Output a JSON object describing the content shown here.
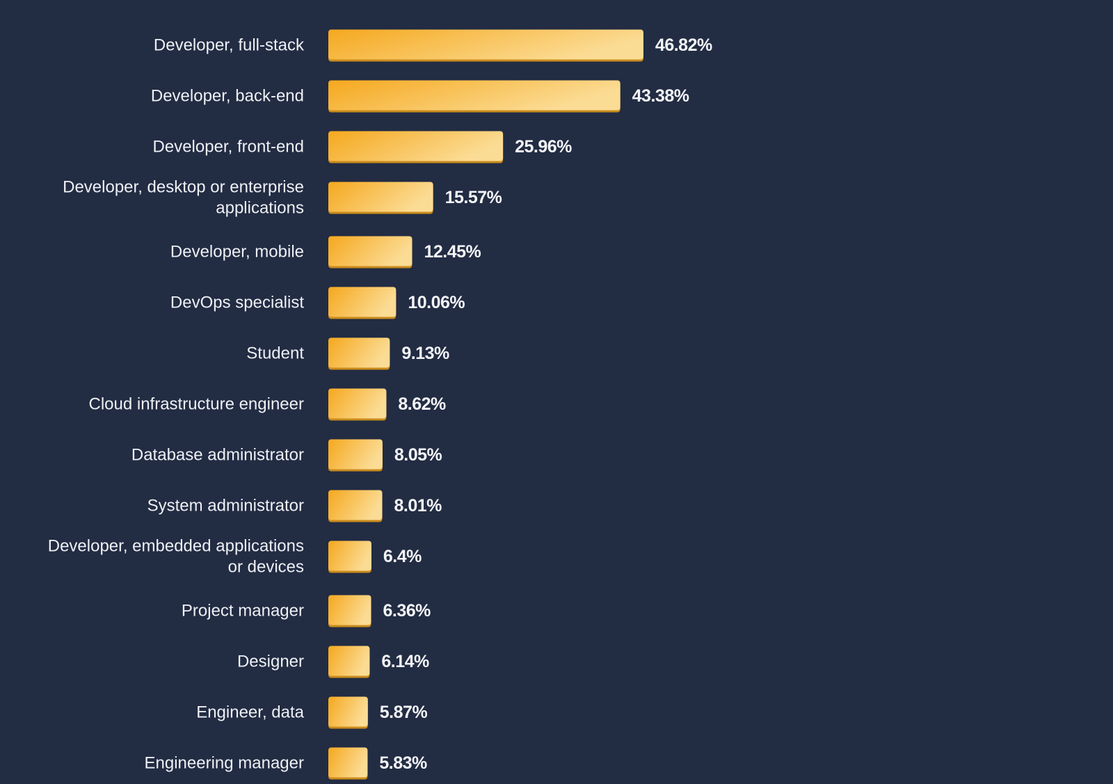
{
  "chart_data": {
    "type": "bar",
    "orientation": "horizontal",
    "categories": [
      "Developer, full-stack",
      "Developer, back-end",
      "Developer, front-end",
      "Developer, desktop or enterprise applications",
      "Developer, mobile",
      "DevOps specialist",
      "Student",
      "Cloud infrastructure engineer",
      "Database administrator",
      "System administrator",
      "Developer, embedded applications or devices",
      "Project manager",
      "Designer",
      "Engineer, data",
      "Engineering manager"
    ],
    "category_lines": [
      [
        "Developer, full-stack"
      ],
      [
        "Developer, back-end"
      ],
      [
        "Developer, front-end"
      ],
      [
        "Developer, desktop or enterprise",
        "applications"
      ],
      [
        "Developer, mobile"
      ],
      [
        "DevOps specialist"
      ],
      [
        "Student"
      ],
      [
        "Cloud infrastructure engineer"
      ],
      [
        "Database administrator"
      ],
      [
        "System administrator"
      ],
      [
        "Developer, embedded applications",
        "or devices"
      ],
      [
        "Project manager"
      ],
      [
        "Designer"
      ],
      [
        "Engineer, data"
      ],
      [
        "Engineering manager"
      ]
    ],
    "values": [
      46.82,
      43.38,
      25.96,
      15.57,
      12.45,
      10.06,
      9.13,
      8.62,
      8.05,
      8.01,
      6.4,
      6.36,
      6.14,
      5.87,
      5.83
    ],
    "value_labels": [
      "46.82%",
      "43.38%",
      "25.96%",
      "15.57%",
      "12.45%",
      "10.06%",
      "9.13%",
      "8.62%",
      "8.05%",
      "8.01%",
      "6.4%",
      "6.36%",
      "6.14%",
      "5.87%",
      "5.83%"
    ],
    "unit": "%",
    "title": "",
    "xlabel": "",
    "ylabel": "",
    "grid": false,
    "legend": "none",
    "colors": {
      "background": "#222c43",
      "bar_start": "#f5a81e",
      "bar_end": "#fbdc95",
      "bar_shadow": "#c98b1c",
      "label": "#eef0f4",
      "value_label": "#f4f5f8"
    }
  }
}
